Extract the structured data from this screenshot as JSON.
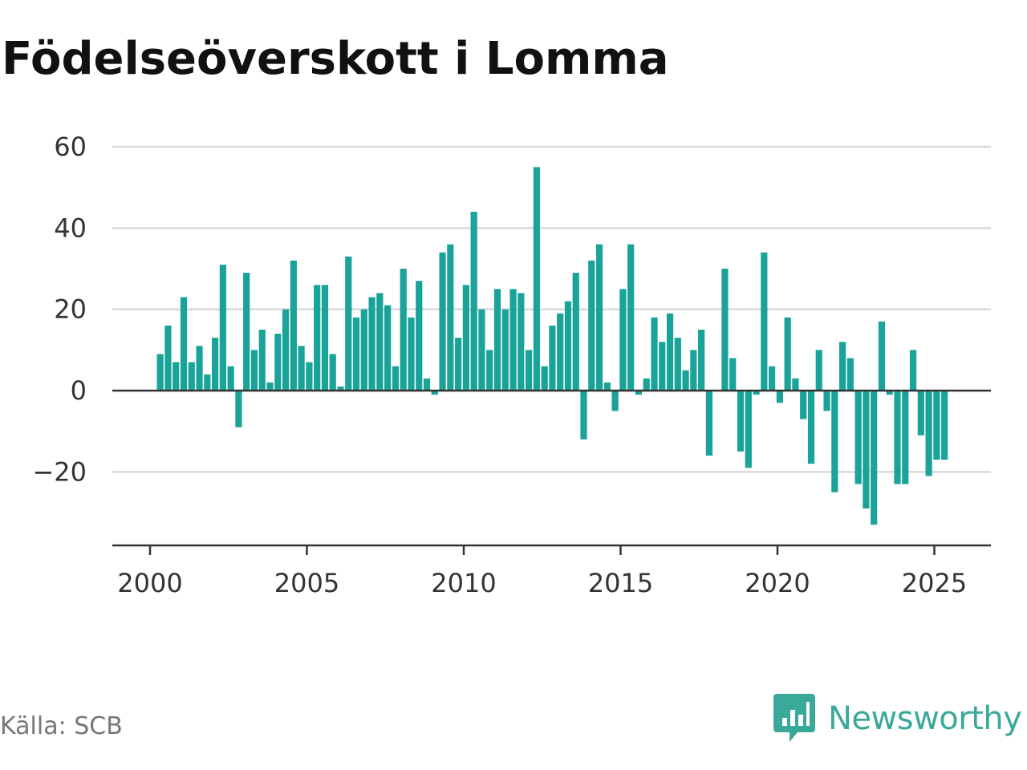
{
  "title": "Födelseöverskott i Lomma",
  "source": "Källa: SCB",
  "logo": {
    "text": "Newsworthy",
    "icon": "newsworthy-chart-icon",
    "color": "#3aa99a"
  },
  "chart_data": {
    "type": "bar",
    "title": "Födelseöverskott i Lomma",
    "xlabel": "",
    "ylabel": "",
    "bar_color": "#1aa399",
    "grid": true,
    "ylim": [
      -38,
      62
    ],
    "xlim": [
      2000,
      2026.8
    ],
    "y_ticks": [
      60,
      40,
      20,
      0,
      -20
    ],
    "y_tick_labels": [
      "60",
      "40",
      "20",
      "0",
      "−20"
    ],
    "x_ticks": [
      2000,
      2005,
      2010,
      2015,
      2020,
      2025
    ],
    "x_tick_labels": [
      "2000",
      "2005",
      "2010",
      "2015",
      "2020",
      "2025"
    ],
    "categories": [
      "2000 K2",
      "2000 K3",
      "2000 K4",
      "2001 K1",
      "2001 K2",
      "2001 K3",
      "2001 K4",
      "2002 K1",
      "2002 K2",
      "2002 K3",
      "2002 K4",
      "2003 K1",
      "2003 K2",
      "2003 K3",
      "2003 K4",
      "2004 K1",
      "2004 K2",
      "2004 K3",
      "2004 K4",
      "2005 K1",
      "2005 K2",
      "2005 K3",
      "2005 K4",
      "2006 K1",
      "2006 K2",
      "2006 K3",
      "2006 K4",
      "2007 K1",
      "2007 K2",
      "2007 K3",
      "2007 K4",
      "2008 K1",
      "2008 K2",
      "2008 K3",
      "2008 K4",
      "2009 K1",
      "2009 K2",
      "2009 K3",
      "2009 K4",
      "2010 K1",
      "2010 K2",
      "2010 K3",
      "2010 K4",
      "2011 K1",
      "2011 K2",
      "2011 K3",
      "2011 K4",
      "2012 K1",
      "2012 K2",
      "2012 K3",
      "2012 K4",
      "2013 K1",
      "2013 K2",
      "2013 K3",
      "2013 K4",
      "2014 K1",
      "2014 K2",
      "2014 K3",
      "2014 K4",
      "2015 K1",
      "2015 K2",
      "2015 K3",
      "2015 K4",
      "2016 K1",
      "2016 K2",
      "2016 K3",
      "2016 K4",
      "2017 K1",
      "2017 K2",
      "2017 K3",
      "2017 K4",
      "2018 K1",
      "2018 K2",
      "2018 K3",
      "2018 K4",
      "2019 K1",
      "2019 K2",
      "2019 K3",
      "2019 K4",
      "2020 K1",
      "2020 K2",
      "2020 K3",
      "2020 K4",
      "2021 K1",
      "2021 K2",
      "2021 K3",
      "2021 K4",
      "2022 K1",
      "2022 K2",
      "2022 K3",
      "2022 K4",
      "2023 K1",
      "2023 K2",
      "2023 K3",
      "2023 K4",
      "2024 K1",
      "2024 K2",
      "2024 K3",
      "2024 K4",
      "2025 K1",
      "2025 K2"
    ],
    "values": [
      9,
      16,
      7,
      23,
      7,
      11,
      4,
      13,
      31,
      6,
      -9,
      29,
      10,
      15,
      2,
      14,
      20,
      32,
      11,
      7,
      26,
      26,
      9,
      1,
      33,
      18,
      20,
      23,
      24,
      21,
      6,
      30,
      18,
      27,
      3,
      -1,
      34,
      36,
      13,
      26,
      44,
      20,
      10,
      25,
      20,
      25,
      24,
      10,
      55,
      6,
      16,
      19,
      22,
      29,
      -12,
      32,
      36,
      2,
      -5,
      25,
      36,
      -1,
      3,
      18,
      12,
      19,
      13,
      5,
      10,
      15,
      -16,
      0,
      30,
      8,
      -15,
      -19,
      -1,
      34,
      6,
      -3,
      18,
      3,
      -7,
      -18,
      10,
      -5,
      -25,
      12,
      8,
      -23,
      -29,
      -33,
      17,
      -1,
      -23,
      -23,
      10,
      -11,
      -21,
      -17,
      -17
    ]
  }
}
